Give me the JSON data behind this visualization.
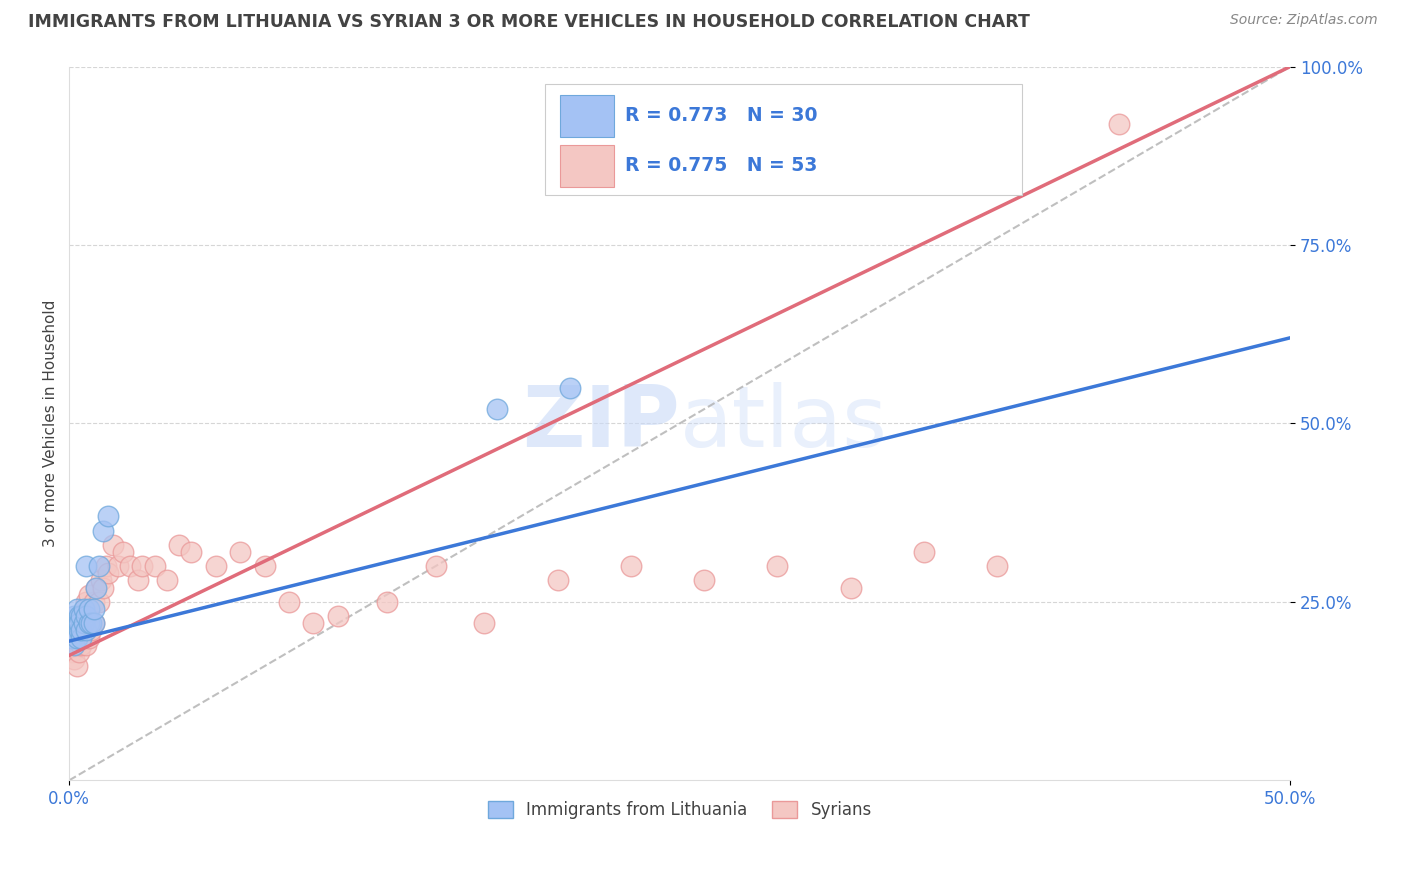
{
  "title": "IMMIGRANTS FROM LITHUANIA VS SYRIAN 3 OR MORE VEHICLES IN HOUSEHOLD CORRELATION CHART",
  "source": "Source: ZipAtlas.com",
  "ylabel": "3 or more Vehicles in Household",
  "legend_label1": "Immigrants from Lithuania",
  "legend_label2": "Syrians",
  "R1": 0.773,
  "N1": 30,
  "R2": 0.775,
  "N2": 53,
  "xlim": [
    0.0,
    0.5
  ],
  "ylim": [
    0.0,
    1.0
  ],
  "xtick_positions": [
    0.0,
    0.5
  ],
  "xtick_labels": [
    "0.0%",
    "50.0%"
  ],
  "ytick_positions": [
    0.25,
    0.5,
    0.75,
    1.0
  ],
  "ytick_labels": [
    "25.0%",
    "50.0%",
    "75.0%",
    "100.0%"
  ],
  "color1": "#a4c2f4",
  "color2": "#f4c7c3",
  "color1_edge": "#6fa8dc",
  "color2_edge": "#ea9999",
  "line_color1": "#3c78d8",
  "line_color2": "#e06c7a",
  "watermark_color": "#c9daf8",
  "grid_color": "#cccccc",
  "title_color": "#434343",
  "source_color": "#888888",
  "axis_color": "#3c78d8",
  "ylabel_color": "#434343",
  "line1_x0": 0.0,
  "line1_y0": 0.195,
  "line1_x1": 0.5,
  "line1_y1": 0.62,
  "line2_x0": 0.0,
  "line2_y0": 0.175,
  "line2_x1": 0.5,
  "line2_y1": 1.0,
  "lithuania_x": [
    0.001,
    0.001,
    0.002,
    0.002,
    0.002,
    0.003,
    0.003,
    0.003,
    0.004,
    0.004,
    0.004,
    0.005,
    0.005,
    0.005,
    0.006,
    0.006,
    0.007,
    0.007,
    0.007,
    0.008,
    0.008,
    0.009,
    0.01,
    0.01,
    0.011,
    0.012,
    0.014,
    0.016,
    0.175,
    0.205
  ],
  "lithuania_y": [
    0.2,
    0.22,
    0.19,
    0.23,
    0.21,
    0.2,
    0.22,
    0.24,
    0.21,
    0.23,
    0.22,
    0.2,
    0.23,
    0.21,
    0.22,
    0.24,
    0.21,
    0.23,
    0.3,
    0.22,
    0.24,
    0.22,
    0.22,
    0.24,
    0.27,
    0.3,
    0.35,
    0.37,
    0.52,
    0.55
  ],
  "syrian_x": [
    0.001,
    0.001,
    0.002,
    0.002,
    0.003,
    0.003,
    0.003,
    0.004,
    0.004,
    0.005,
    0.005,
    0.006,
    0.006,
    0.007,
    0.007,
    0.008,
    0.008,
    0.009,
    0.01,
    0.01,
    0.011,
    0.012,
    0.013,
    0.014,
    0.015,
    0.016,
    0.018,
    0.02,
    0.022,
    0.025,
    0.028,
    0.03,
    0.035,
    0.04,
    0.045,
    0.05,
    0.06,
    0.07,
    0.08,
    0.09,
    0.1,
    0.11,
    0.13,
    0.15,
    0.17,
    0.2,
    0.23,
    0.26,
    0.29,
    0.32,
    0.35,
    0.38,
    0.43
  ],
  "syrian_y": [
    0.18,
    0.2,
    0.17,
    0.22,
    0.16,
    0.19,
    0.21,
    0.18,
    0.22,
    0.19,
    0.22,
    0.2,
    0.23,
    0.19,
    0.25,
    0.2,
    0.26,
    0.21,
    0.22,
    0.25,
    0.27,
    0.25,
    0.28,
    0.27,
    0.3,
    0.29,
    0.33,
    0.3,
    0.32,
    0.3,
    0.28,
    0.3,
    0.3,
    0.28,
    0.33,
    0.32,
    0.3,
    0.32,
    0.3,
    0.25,
    0.22,
    0.23,
    0.25,
    0.3,
    0.22,
    0.28,
    0.3,
    0.28,
    0.3,
    0.27,
    0.32,
    0.3,
    0.92
  ]
}
